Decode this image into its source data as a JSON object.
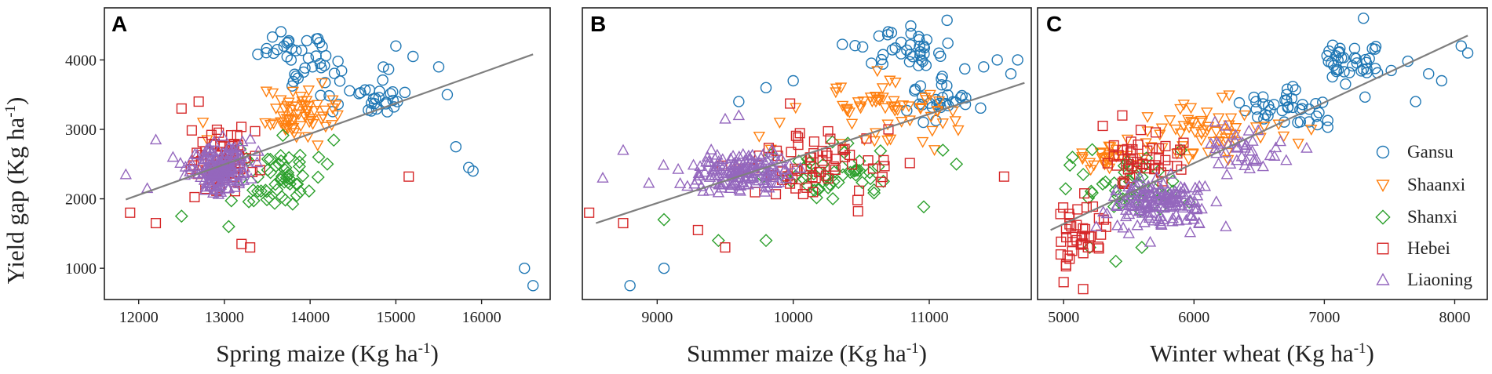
{
  "figure": {
    "y_axis_title": "Yield gap (Kg ha",
    "unit_superscript": "-1",
    "unit_close": ")"
  },
  "legend": [
    {
      "name": "Gansu",
      "marker": "circle",
      "color": "#1f77b4"
    },
    {
      "name": "Shaanxi",
      "marker": "triangle-down",
      "color": "#ff7f0e"
    },
    {
      "name": "Shanxi",
      "marker": "diamond",
      "color": "#2ca02c"
    },
    {
      "name": "Hebei",
      "marker": "square",
      "color": "#d62728"
    },
    {
      "name": "Liaoning",
      "marker": "triangle-up",
      "color": "#9467bd"
    }
  ],
  "trend_color": "#7f7f7f",
  "chart_data": [
    {
      "type": "scatter",
      "panel": "A",
      "xlabel": "Spring maize (Kg ha",
      "ylabel": "Yield gap (Kg ha-1)",
      "xlim": [
        11600,
        16800
      ],
      "ylim": [
        550,
        4750
      ],
      "xticks": [
        12000,
        13000,
        14000,
        15000,
        16000
      ],
      "yticks": [
        1000,
        2000,
        3000,
        4000
      ],
      "trend": [
        [
          11850,
          1990
        ],
        [
          16600,
          4080
        ]
      ],
      "series": [
        {
          "name": "Gansu",
          "clusters": [
            [
              13900,
              4050,
              450,
              450,
              40
            ],
            [
              14700,
              3500,
              500,
              350,
              30
            ]
          ],
          "points": [
            [
              15600,
              3500
            ],
            [
              15700,
              2750
            ],
            [
              15850,
              2450
            ],
            [
              15900,
              2400
            ],
            [
              16500,
              1000
            ],
            [
              16600,
              750
            ],
            [
              15200,
              4050
            ],
            [
              15000,
              4200
            ],
            [
              15500,
              3900
            ]
          ]
        },
        {
          "name": "Shaanxi",
          "clusters": [
            [
              13800,
              3200,
              400,
              350,
              60
            ]
          ],
          "points": [
            [
              12750,
              3100
            ],
            [
              12800,
              2850
            ],
            [
              14300,
              3350
            ]
          ]
        },
        {
          "name": "Shanxi",
          "clusters": [
            [
              13600,
              2300,
              500,
              450,
              55
            ]
          ],
          "points": [
            [
              12500,
              1750
            ],
            [
              13050,
              1600
            ],
            [
              14200,
              2500
            ],
            [
              14100,
              2600
            ]
          ]
        },
        {
          "name": "Hebei",
          "clusters": [
            [
              13000,
              2550,
              400,
              450,
              70
            ]
          ],
          "points": [
            [
              11900,
              1800
            ],
            [
              12200,
              1650
            ],
            [
              12500,
              3300
            ],
            [
              12700,
              3400
            ],
            [
              13300,
              1300
            ],
            [
              15150,
              2320
            ],
            [
              13200,
              1350
            ]
          ]
        },
        {
          "name": "Liaoning",
          "clusters": [
            [
              12950,
              2450,
              350,
              350,
              160
            ]
          ],
          "points": [
            [
              11850,
              2350
            ],
            [
              12200,
              2850
            ],
            [
              12400,
              2600
            ],
            [
              12100,
              2150
            ]
          ]
        }
      ]
    },
    {
      "type": "scatter",
      "panel": "B",
      "xlabel": "Summer maize (Kg ha",
      "ylabel": "Yield gap (Kg ha-1)",
      "xlim": [
        8450,
        11750
      ],
      "ylim": [
        550,
        4750
      ],
      "xticks": [
        9000,
        10000,
        11000
      ],
      "yticks": [
        1000,
        2000,
        3000,
        4000
      ],
      "trend": [
        [
          8550,
          1650
        ],
        [
          11700,
          3670
        ]
      ],
      "series": [
        {
          "name": "Gansu",
          "clusters": [
            [
              10800,
              4150,
              400,
              350,
              40
            ],
            [
              11050,
              3400,
              250,
              300,
              30
            ]
          ],
          "points": [
            [
              8800,
              750
            ],
            [
              9050,
              1000
            ],
            [
              9600,
              3400
            ],
            [
              9800,
              3600
            ],
            [
              10000,
              3700
            ],
            [
              11400,
              3900
            ],
            [
              11500,
              4000
            ],
            [
              11600,
              3800
            ],
            [
              11650,
              4000
            ]
          ]
        },
        {
          "name": "Shaanxi",
          "clusters": [
            [
              10650,
              3250,
              500,
              400,
              60
            ]
          ],
          "points": [
            [
              9750,
              2900
            ],
            [
              9900,
              3100
            ]
          ]
        },
        {
          "name": "Shanxi",
          "clusters": [
            [
              10300,
              2300,
              450,
              400,
              50
            ]
          ],
          "points": [
            [
              9050,
              1700
            ],
            [
              9450,
              1400
            ],
            [
              9800,
              1400
            ],
            [
              11100,
              2700
            ],
            [
              11200,
              2500
            ]
          ]
        },
        {
          "name": "Hebei",
          "clusters": [
            [
              10100,
              2450,
              550,
              500,
              65
            ]
          ],
          "points": [
            [
              8500,
              1800
            ],
            [
              8750,
              1650
            ],
            [
              9300,
              1550
            ],
            [
              9500,
              1300
            ],
            [
              11550,
              2320
            ],
            [
              10700,
              3000
            ]
          ]
        },
        {
          "name": "Liaoning",
          "clusters": [
            [
              9600,
              2400,
              400,
              280,
              150
            ]
          ],
          "points": [
            [
              8600,
              2300
            ],
            [
              8750,
              2700
            ],
            [
              9500,
              3150
            ],
            [
              9600,
              3200
            ]
          ]
        }
      ]
    },
    {
      "type": "scatter",
      "panel": "C",
      "xlabel": "Winter wheat (Kg ha",
      "ylabel": "Yield gap (Kg ha-1)",
      "xlim": [
        4800,
        8250
      ],
      "ylim": [
        550,
        4750
      ],
      "xticks": [
        5000,
        6000,
        7000,
        8000
      ],
      "yticks": [
        1000,
        2000,
        3000,
        4000
      ],
      "trend": [
        [
          4900,
          1550
        ],
        [
          8100,
          4350
        ]
      ],
      "series": [
        {
          "name": "Gansu",
          "clusters": [
            [
              7250,
              4000,
              350,
              350,
              40
            ],
            [
              6700,
              3300,
              400,
              300,
              40
            ]
          ],
          "points": [
            [
              7800,
              3800
            ],
            [
              7900,
              3700
            ],
            [
              8050,
              4200
            ],
            [
              8100,
              4100
            ],
            [
              7300,
              4600
            ],
            [
              7700,
              3400
            ]
          ]
        },
        {
          "name": "Shaanxi",
          "clusters": [
            [
              6100,
              3000,
              500,
              400,
              60
            ],
            [
              5300,
              2600,
              200,
              150,
              25
            ]
          ],
          "points": [
            [
              6800,
              2800
            ],
            [
              6900,
              3000
            ]
          ]
        },
        {
          "name": "Shanxi",
          "clusters": [
            [
              5500,
              2150,
              350,
              400,
              45
            ]
          ],
          "points": [
            [
              5200,
              1300
            ],
            [
              5400,
              1100
            ],
            [
              5600,
              1300
            ],
            [
              5900,
              2700
            ]
          ]
        },
        {
          "name": "Hebei",
          "clusters": [
            [
              5600,
              2600,
              300,
              350,
              45
            ],
            [
              5100,
              1500,
              180,
              450,
              40
            ]
          ],
          "points": [
            [
              5000,
              800
            ],
            [
              5150,
              700
            ],
            [
              5300,
              3050
            ],
            [
              5450,
              3200
            ]
          ]
        },
        {
          "name": "Liaoning",
          "clusters": [
            [
              5750,
              1950,
              350,
              350,
              150
            ],
            [
              6400,
              2700,
              300,
              350,
              40
            ]
          ],
          "points": [
            [
              5250,
              1600
            ],
            [
              5500,
              1500
            ]
          ]
        }
      ]
    }
  ]
}
